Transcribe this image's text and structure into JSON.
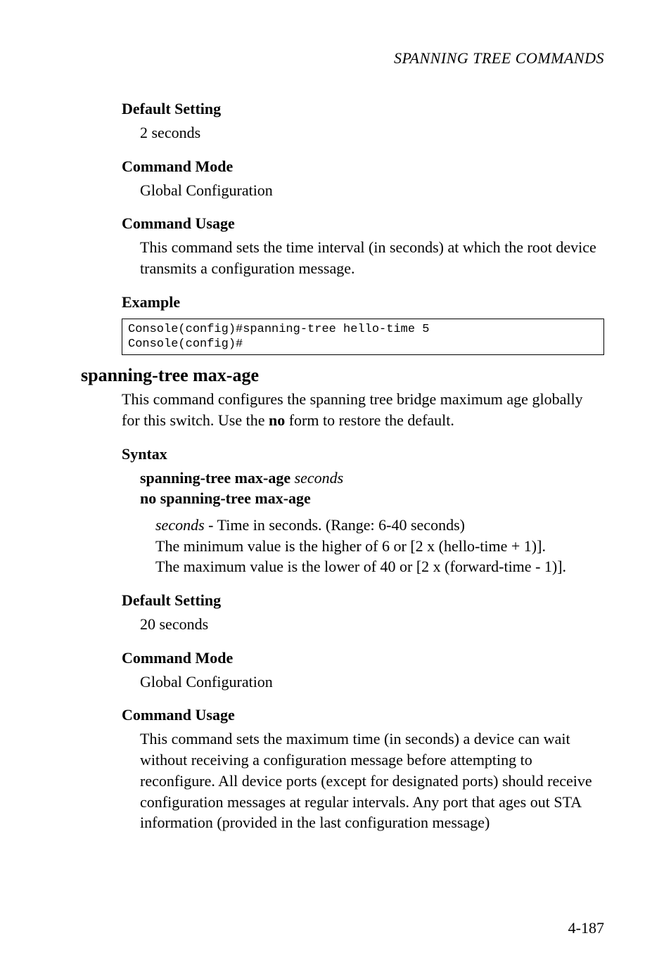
{
  "running_head": "SPANNING TREE COMMANDS",
  "sec1": {
    "h1": "Default Setting",
    "p1": "2 seconds",
    "h2": "Command Mode",
    "p2": "Global Configuration",
    "h3": "Command Usage",
    "p3": "This command sets the time interval (in seconds) at which the root device transmits a configuration message.",
    "h4": "Example",
    "code": "Console(config)#spanning-tree hello-time 5\nConsole(config)#"
  },
  "cmd": {
    "title": "spanning-tree max-age",
    "intro1": "This command configures the spanning tree bridge maximum age globally for this switch. Use the ",
    "intro_no": "no",
    "intro2": " form to restore the default.",
    "h_syntax": "Syntax",
    "syn1a": "spanning-tree max-age",
    "syn1b": " seconds",
    "syn2": "no spanning-tree max-age",
    "param_i": "seconds",
    "param_rest": " - Time in seconds. (Range: 6-40 seconds)",
    "param_l2": "The minimum value is the higher of 6 or [2 x (hello-time + 1)].",
    "param_l3": "The maximum value is the lower of 40 or [2 x (forward-time - 1)].",
    "h_def": "Default Setting",
    "def": "20 seconds",
    "h_mode": "Command Mode",
    "mode": "Global Configuration",
    "h_usage": "Command Usage",
    "usage": "This command sets the maximum time (in seconds) a device can wait without receiving a configuration message before attempting to reconfigure. All device ports (except for designated ports) should receive configuration messages at regular intervals. Any port that ages out STA information (provided in the last configuration message)"
  },
  "page_number": "4-187"
}
